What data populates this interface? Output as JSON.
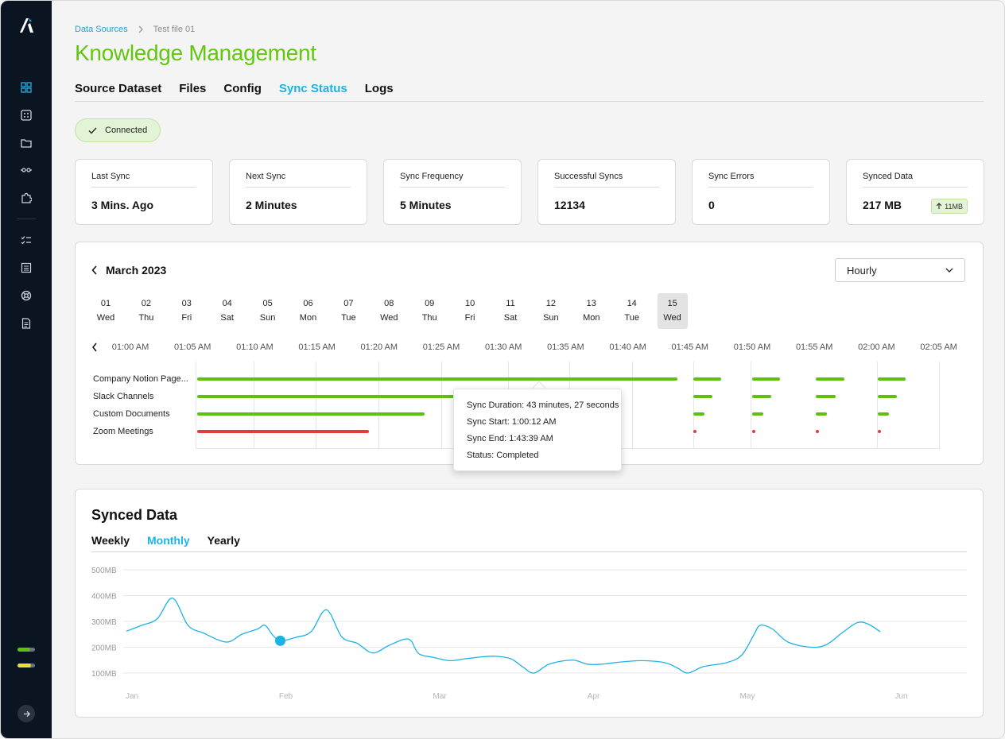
{
  "breadcrumb": {
    "root": "Data Sources",
    "current": "Test file 01"
  },
  "page_title": "Knowledge Management",
  "tabs": [
    {
      "label": "Source Dataset",
      "active": false
    },
    {
      "label": "Files",
      "active": false
    },
    {
      "label": "Config",
      "active": false
    },
    {
      "label": "Sync Status",
      "active": true
    },
    {
      "label": "Logs",
      "active": false
    }
  ],
  "status_badge": {
    "label": "Connected"
  },
  "stats": [
    {
      "label": "Last Sync",
      "value": "3 Mins. Ago"
    },
    {
      "label": "Next Sync",
      "value": "2 Minutes"
    },
    {
      "label": "Sync Frequency",
      "value": "5 Minutes"
    },
    {
      "label": "Successful Syncs",
      "value": "12134"
    },
    {
      "label": "Sync Errors",
      "value": "0"
    },
    {
      "label": "Synced Data",
      "value": "217 MB",
      "delta": "11MB"
    }
  ],
  "calendar": {
    "month": "March 2023",
    "granularity": "Hourly",
    "days": [
      {
        "n": "01",
        "w": "Wed"
      },
      {
        "n": "02",
        "w": "Thu"
      },
      {
        "n": "03",
        "w": "Fri"
      },
      {
        "n": "04",
        "w": "Sat"
      },
      {
        "n": "05",
        "w": "Sun"
      },
      {
        "n": "06",
        "w": "Mon"
      },
      {
        "n": "07",
        "w": "Tue"
      },
      {
        "n": "08",
        "w": "Wed"
      },
      {
        "n": "09",
        "w": "Thu"
      },
      {
        "n": "10",
        "w": "Fri"
      },
      {
        "n": "11",
        "w": "Sat"
      },
      {
        "n": "12",
        "w": "Sun"
      },
      {
        "n": "13",
        "w": "Mon"
      },
      {
        "n": "14",
        "w": "Tue"
      },
      {
        "n": "15",
        "w": "Wed"
      }
    ],
    "selected_day": "15",
    "times": [
      "01:00 AM",
      "01:05 AM",
      "01:10 AM",
      "01:15 AM",
      "01:20 AM",
      "01:25 AM",
      "01:30 AM",
      "01:35 AM",
      "01:40 AM",
      "01:45 AM",
      "01:50 AM",
      "01:55 AM",
      "02:00 AM",
      "02:05 AM"
    ]
  },
  "sync_rows": [
    {
      "label": "Company Notion Page...",
      "status": "success"
    },
    {
      "label": "Slack Channels",
      "status": "success"
    },
    {
      "label": "Custom Documents",
      "status": "success"
    },
    {
      "label": "Zoom Meetings",
      "status": "error"
    }
  ],
  "tooltip": {
    "duration": "Sync Duration: 43 minutes, 27 seconds",
    "start": "Sync Start: 1:00:12 AM",
    "end": "Sync End: 1:43:39 AM",
    "status": "Status: Completed"
  },
  "synced_data": {
    "title": "Synced Data",
    "tabs": [
      {
        "label": "Weekly",
        "active": false
      },
      {
        "label": "Monthly",
        "active": true
      },
      {
        "label": "Yearly",
        "active": false
      }
    ]
  },
  "colors": {
    "brand_green": "#62c70f",
    "accent_blue": "#1bb3e6",
    "error_red": "#e33b3b",
    "sidebar_bg": "#0b1421"
  },
  "chart_data": {
    "type": "line",
    "title": "",
    "xlabel": "",
    "ylabel": "",
    "x_ticks": [
      "Jan",
      "Feb",
      "Mar",
      "Apr",
      "May",
      "Jun"
    ],
    "y_ticks": [
      "100MB",
      "200MB",
      "300MB",
      "400MB",
      "500MB"
    ],
    "ylim": [
      100,
      500
    ],
    "grid": true,
    "series": [
      {
        "values": [
          [
            0.0,
            262
          ],
          [
            0.1,
            285
          ],
          [
            0.2,
            310
          ],
          [
            0.3,
            390
          ],
          [
            0.4,
            285
          ],
          [
            0.5,
            255
          ],
          [
            0.65,
            220
          ],
          [
            0.75,
            250
          ],
          [
            0.85,
            270
          ],
          [
            0.9,
            285
          ],
          [
            0.95,
            248
          ],
          [
            1.0,
            225
          ],
          [
            1.1,
            238
          ],
          [
            1.2,
            260
          ],
          [
            1.3,
            345
          ],
          [
            1.4,
            240
          ],
          [
            1.5,
            215
          ],
          [
            1.6,
            178
          ],
          [
            1.7,
            205
          ],
          [
            1.8,
            230
          ],
          [
            1.85,
            225
          ],
          [
            1.9,
            175
          ],
          [
            2.0,
            160
          ],
          [
            2.1,
            148
          ],
          [
            2.2,
            155
          ],
          [
            2.3,
            162
          ],
          [
            2.4,
            165
          ],
          [
            2.5,
            155
          ],
          [
            2.58,
            122
          ],
          [
            2.65,
            100
          ],
          [
            2.75,
            135
          ],
          [
            2.9,
            150
          ],
          [
            3.0,
            134
          ],
          [
            3.1,
            135
          ],
          [
            3.2,
            142
          ],
          [
            3.35,
            148
          ],
          [
            3.5,
            140
          ],
          [
            3.58,
            120
          ],
          [
            3.65,
            100
          ],
          [
            3.75,
            125
          ],
          [
            3.9,
            140
          ],
          [
            4.0,
            170
          ],
          [
            4.08,
            250
          ],
          [
            4.12,
            285
          ],
          [
            4.2,
            270
          ],
          [
            4.3,
            220
          ],
          [
            4.45,
            200
          ],
          [
            4.55,
            210
          ],
          [
            4.65,
            255
          ],
          [
            4.75,
            295
          ],
          [
            4.82,
            290
          ],
          [
            4.9,
            260
          ]
        ]
      }
    ],
    "highlight": {
      "x": 1.0,
      "y": 225
    }
  }
}
